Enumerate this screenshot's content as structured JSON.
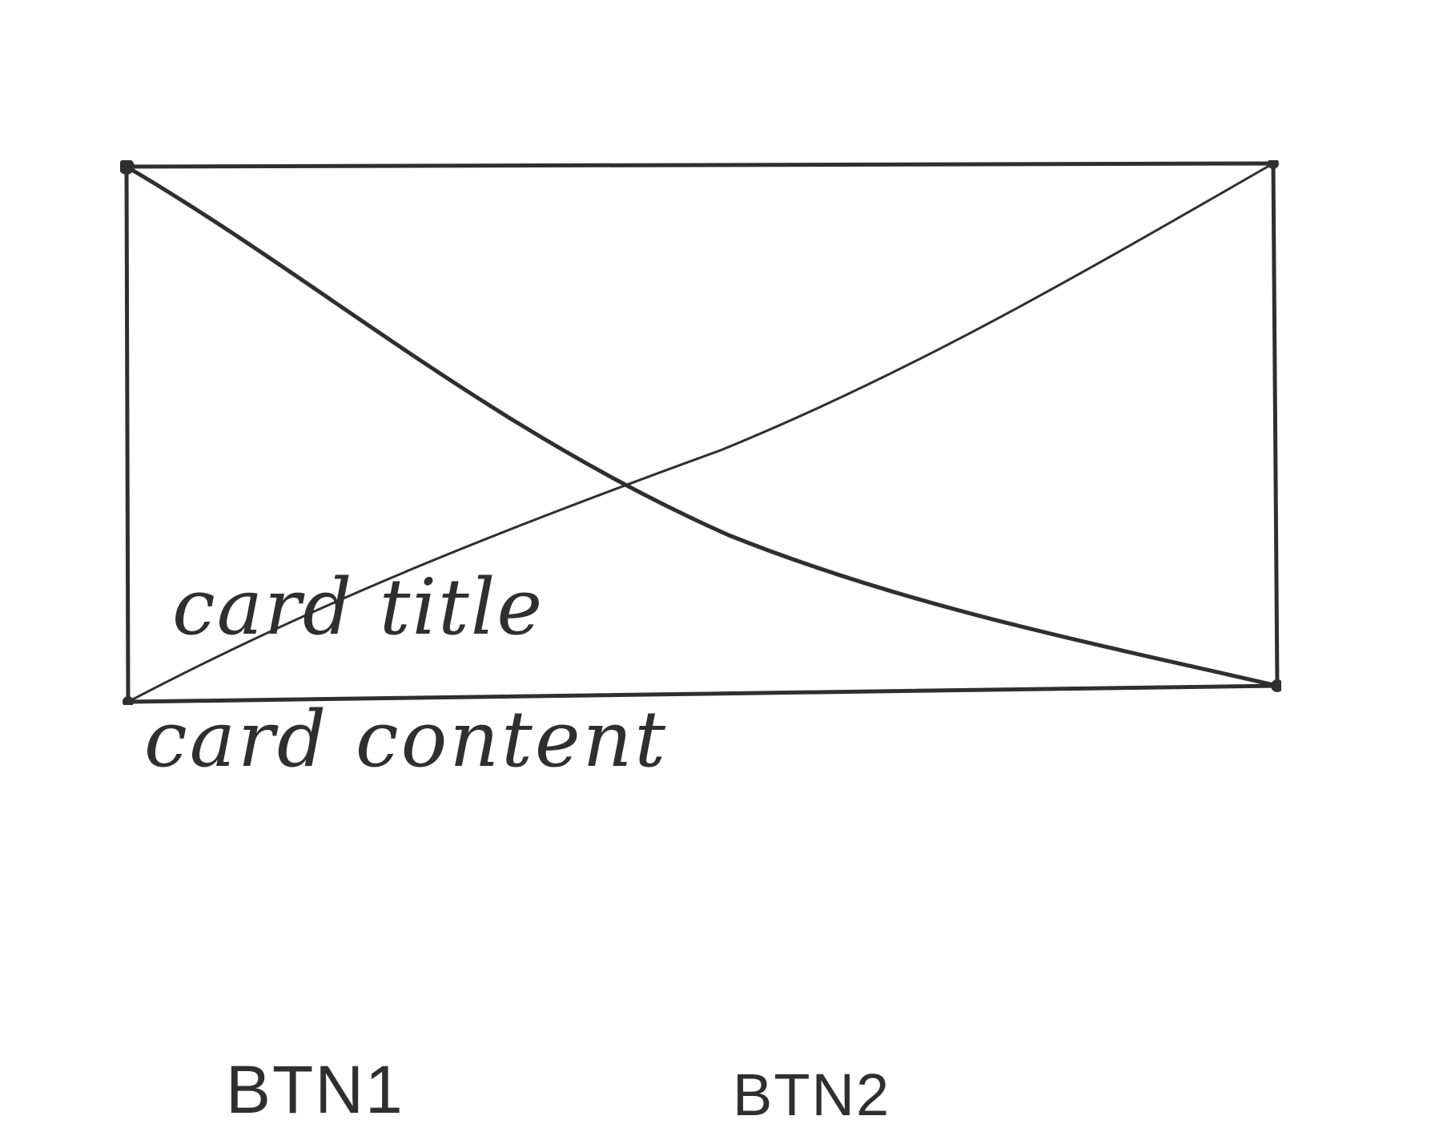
{
  "card": {
    "title": "card title",
    "content": "card content"
  },
  "actions": {
    "btn1_label": "BTN1",
    "btn2_label": "BTN2"
  },
  "image_placeholder": {
    "icon": "image-placeholder-icon",
    "stroke_color": "#2f2f2f"
  }
}
